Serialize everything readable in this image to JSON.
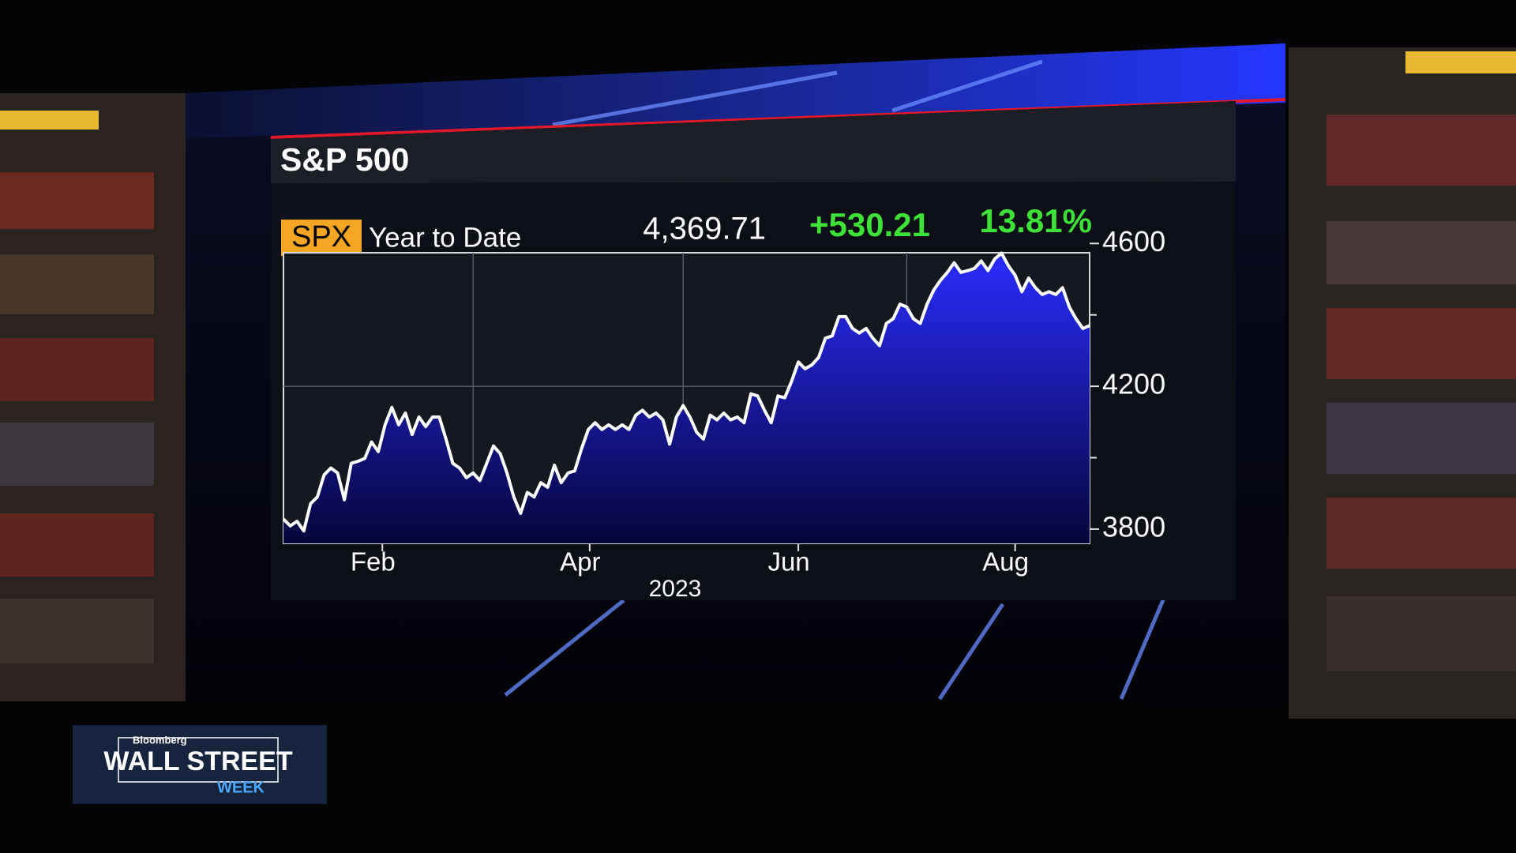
{
  "chart_data": {
    "type": "area",
    "title": "S&P 500",
    "ticker": "SPX",
    "period": "Year to Date",
    "last_price": "4,369.71",
    "net_change": "+530.21",
    "pct_change": "13.81%",
    "year_label": "2023",
    "series": [
      {
        "name": "SPX",
        "color": "#ffffff",
        "values": [
          3828,
          3809,
          3822,
          3795,
          3871,
          3890,
          3952,
          3971,
          3957,
          3882,
          3984,
          3990,
          3998,
          4044,
          4017,
          4092,
          4141,
          4092,
          4125,
          4065,
          4114,
          4087,
          4114,
          4114,
          4052,
          3984,
          3971,
          3944,
          3957,
          3936,
          3984,
          4033,
          4011,
          3957,
          3890,
          3844,
          3903,
          3890,
          3930,
          3917,
          3979,
          3930,
          3957,
          3963,
          4025,
          4079,
          4098,
          4079,
          4092,
          4079,
          4092,
          4079,
          4119,
          4133,
          4114,
          4125,
          4106,
          4038,
          4114,
          4146,
          4114,
          4071,
          4052,
          4119,
          4106,
          4125,
          4106,
          4114,
          4098,
          4179,
          4173,
          4133,
          4098,
          4173,
          4168,
          4214,
          4268,
          4249,
          4260,
          4281,
          4335,
          4341,
          4395,
          4395,
          4362,
          4349,
          4362,
          4335,
          4314,
          4376,
          4389,
          4430,
          4422,
          4389,
          4376,
          4430,
          4470,
          4497,
          4519,
          4546,
          4519,
          4524,
          4530,
          4551,
          4524,
          4557,
          4573,
          4538,
          4511,
          4465,
          4503,
          4476,
          4457,
          4465,
          4457,
          4476,
          4422,
          4389,
          4362,
          4370
        ]
      }
    ],
    "xlim": [
      0,
      119
    ],
    "xticks": [
      {
        "value": 14.6,
        "label": "Feb"
      },
      {
        "value": 45.2,
        "label": "Apr"
      },
      {
        "value": 76,
        "label": "Jun"
      },
      {
        "value": 108,
        "label": "Aug"
      }
    ],
    "xgrid": [
      28,
      59,
      92
    ],
    "ylim": [
      3760,
      4605
    ],
    "yticks": [
      3800,
      4200,
      4600
    ],
    "yminorticks": [
      4000,
      4400
    ],
    "grid": true,
    "channel": {
      "brand": "Bloomberg",
      "show": "WALL STREET",
      "sub": "WEEK"
    }
  }
}
